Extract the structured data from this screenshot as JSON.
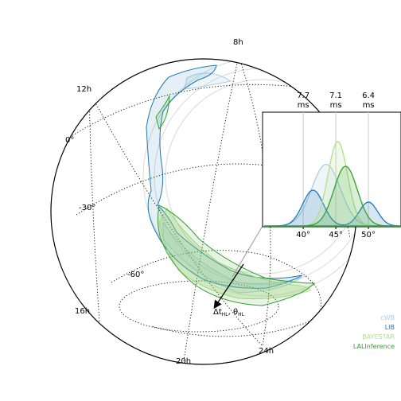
{
  "chart_data": {
    "type": "sky-map",
    "ra_labels": [
      {
        "id": "8h",
        "text": "8h"
      },
      {
        "id": "12h",
        "text": "12h"
      },
      {
        "id": "16h",
        "text": "16h"
      },
      {
        "id": "20h",
        "text": "20h"
      },
      {
        "id": "24h",
        "text": "24h"
      }
    ],
    "dec_labels": [
      {
        "id": "0",
        "text": "0°"
      },
      {
        "id": "m30",
        "text": "-30°"
      },
      {
        "id": "m60",
        "text": "-60°"
      }
    ],
    "arrow_label": {
      "main": "Δt",
      "sub": "HL",
      "sep": ", θ",
      "sub2": "HL"
    },
    "legend": [
      {
        "name": "cWB",
        "color": "#a6cee3"
      },
      {
        "name": "LIB",
        "color": "#1f78b4"
      },
      {
        "name": "BAYESTAR",
        "color": "#b2df8a"
      },
      {
        "name": "LALInference",
        "color": "#33a02c"
      }
    ],
    "inset": {
      "xlabel": "",
      "xlim": [
        34,
        55
      ],
      "ticks": [
        40,
        45,
        50
      ],
      "tick_labels": [
        "40°",
        "45°",
        "50°"
      ],
      "top_markers": [
        {
          "x": 40,
          "line1": "7.7",
          "line2": "ms"
        },
        {
          "x": 45,
          "line1": "7.1",
          "line2": "ms"
        },
        {
          "x": 50,
          "line1": "6.4",
          "line2": "ms"
        }
      ],
      "series": [
        {
          "name": "cWB",
          "color": "#a6cee3",
          "components": [
            {
              "mu": 43.5,
              "sigma": 2.2,
              "amp": 0.62
            }
          ]
        },
        {
          "name": "LIB",
          "color": "#1f78b4",
          "components": [
            {
              "mu": 41.5,
              "sigma": 1.6,
              "amp": 0.36
            },
            {
              "mu": 50.0,
              "sigma": 1.4,
              "amp": 0.24
            }
          ]
        },
        {
          "name": "BAYESTAR",
          "color": "#b2df8a",
          "components": [
            {
              "mu": 45.3,
              "sigma": 1.5,
              "amp": 0.85
            }
          ]
        },
        {
          "name": "LALInference",
          "color": "#33a02c",
          "components": [
            {
              "mu": 46.5,
              "sigma": 1.8,
              "amp": 0.6
            }
          ]
        }
      ]
    }
  }
}
